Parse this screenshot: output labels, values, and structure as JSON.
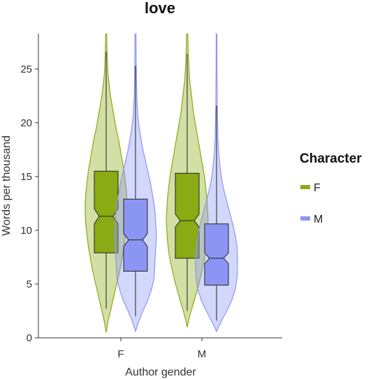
{
  "chart_data": {
    "type": "violin-box",
    "title": "love",
    "xlabel": "Author gender",
    "ylabel": "Words per thousand",
    "categories": [
      "F",
      "M"
    ],
    "ylim": [
      0,
      28.3
    ],
    "yticks": [
      0,
      5,
      10,
      15,
      20,
      25
    ],
    "grid": false,
    "legend": {
      "title": "Character",
      "position": "right",
      "entries": [
        {
          "label": "F",
          "color": "#8aab13"
        },
        {
          "label": "M",
          "color": "#8b96f4"
        }
      ]
    },
    "series": [
      {
        "name": "F",
        "color": "#8aab13",
        "boxes": [
          {
            "category": "F",
            "q1": 7.9,
            "median": 11.3,
            "q3": 15.5,
            "whisker_low": 2.7,
            "whisker_high": 26.6,
            "notch_low": 10.6,
            "notch_high": 12.0,
            "violin": [
              [
                0.5,
                0
              ],
              [
                1.5,
                0.03
              ],
              [
                2.5,
                0.07
              ],
              [
                3.5,
                0.11
              ],
              [
                4.5,
                0.15
              ],
              [
                5.5,
                0.19
              ],
              [
                6.5,
                0.23
              ],
              [
                7.5,
                0.26
              ],
              [
                8.5,
                0.29
              ],
              [
                9.5,
                0.31
              ],
              [
                10.5,
                0.33
              ],
              [
                11.5,
                0.34
              ],
              [
                12.5,
                0.34
              ],
              [
                13.5,
                0.33
              ],
              [
                14.5,
                0.31
              ],
              [
                15.5,
                0.29
              ],
              [
                16.5,
                0.26
              ],
              [
                17.5,
                0.23
              ],
              [
                18.5,
                0.2
              ],
              [
                19.5,
                0.16
              ],
              [
                20.5,
                0.13
              ],
              [
                21.5,
                0.1
              ],
              [
                22.5,
                0.07
              ],
              [
                23.5,
                0.05
              ],
              [
                24.5,
                0.03
              ],
              [
                25.5,
                0.02
              ],
              [
                26.5,
                0.015
              ],
              [
                27.5,
                0.01
              ],
              [
                28.3,
                0.008
              ]
            ]
          },
          {
            "category": "M",
            "q1": 7.4,
            "median": 10.9,
            "q3": 15.3,
            "whisker_low": 2.5,
            "whisker_high": 26.4,
            "notch_low": 10.3,
            "notch_high": 11.5,
            "violin": [
              [
                1.0,
                0
              ],
              [
                2.0,
                0.04
              ],
              [
                3.0,
                0.09
              ],
              [
                4.0,
                0.14
              ],
              [
                5.0,
                0.19
              ],
              [
                6.0,
                0.23
              ],
              [
                7.0,
                0.27
              ],
              [
                8.0,
                0.3
              ],
              [
                9.0,
                0.32
              ],
              [
                10.0,
                0.33
              ],
              [
                11.0,
                0.34
              ],
              [
                12.0,
                0.33
              ],
              [
                13.0,
                0.32
              ],
              [
                14.0,
                0.3
              ],
              [
                15.0,
                0.28
              ],
              [
                16.0,
                0.25
              ],
              [
                17.0,
                0.22
              ],
              [
                18.0,
                0.19
              ],
              [
                19.0,
                0.16
              ],
              [
                20.0,
                0.13
              ],
              [
                21.0,
                0.1
              ],
              [
                22.0,
                0.08
              ],
              [
                23.0,
                0.06
              ],
              [
                24.0,
                0.04
              ],
              [
                25.0,
                0.03
              ],
              [
                26.0,
                0.02
              ],
              [
                27.0,
                0.015
              ],
              [
                28.3,
                0.01
              ]
            ]
          }
        ]
      },
      {
        "name": "M",
        "color": "#8b96f4",
        "boxes": [
          {
            "category": "F",
            "q1": 6.2,
            "median": 9.1,
            "q3": 12.9,
            "whisker_low": 2.0,
            "whisker_high": 25.3,
            "notch_low": 8.5,
            "notch_high": 9.7,
            "violin": [
              [
                0.6,
                0
              ],
              [
                1.5,
                0.05
              ],
              [
                2.5,
                0.12
              ],
              [
                3.5,
                0.2
              ],
              [
                4.5,
                0.26
              ],
              [
                5.5,
                0.3
              ],
              [
                6.5,
                0.31
              ],
              [
                7.5,
                0.32
              ],
              [
                8.5,
                0.33
              ],
              [
                9.5,
                0.34
              ],
              [
                10.5,
                0.33
              ],
              [
                11.5,
                0.32
              ],
              [
                12.5,
                0.3
              ],
              [
                13.5,
                0.27
              ],
              [
                14.5,
                0.24
              ],
              [
                15.5,
                0.2
              ],
              [
                16.5,
                0.16
              ],
              [
                17.5,
                0.12
              ],
              [
                18.5,
                0.09
              ],
              [
                19.5,
                0.06
              ],
              [
                20.5,
                0.04
              ],
              [
                21.5,
                0.03
              ],
              [
                22.5,
                0.02
              ],
              [
                24,
                0.015
              ],
              [
                26,
                0.01
              ],
              [
                28.3,
                0.008
              ]
            ]
          },
          {
            "category": "M",
            "q1": 4.9,
            "median": 7.4,
            "q3": 10.6,
            "whisker_low": 1.6,
            "whisker_high": 21.6,
            "notch_low": 6.9,
            "notch_high": 7.9,
            "violin": [
              [
                0.6,
                0
              ],
              [
                1.5,
                0.08
              ],
              [
                2.5,
                0.18
              ],
              [
                3.5,
                0.27
              ],
              [
                4.5,
                0.33
              ],
              [
                5.5,
                0.36
              ],
              [
                6.5,
                0.37
              ],
              [
                7.5,
                0.37
              ],
              [
                8.5,
                0.36
              ],
              [
                9.5,
                0.33
              ],
              [
                10.5,
                0.29
              ],
              [
                11.5,
                0.24
              ],
              [
                12.5,
                0.19
              ],
              [
                13.5,
                0.14
              ],
              [
                14.5,
                0.1
              ],
              [
                15.5,
                0.07
              ],
              [
                16.5,
                0.05
              ],
              [
                17.5,
                0.035
              ],
              [
                18.5,
                0.025
              ],
              [
                20,
                0.018
              ],
              [
                22,
                0.012
              ],
              [
                25,
                0.008
              ],
              [
                28.3,
                0.006
              ]
            ]
          }
        ]
      }
    ]
  }
}
